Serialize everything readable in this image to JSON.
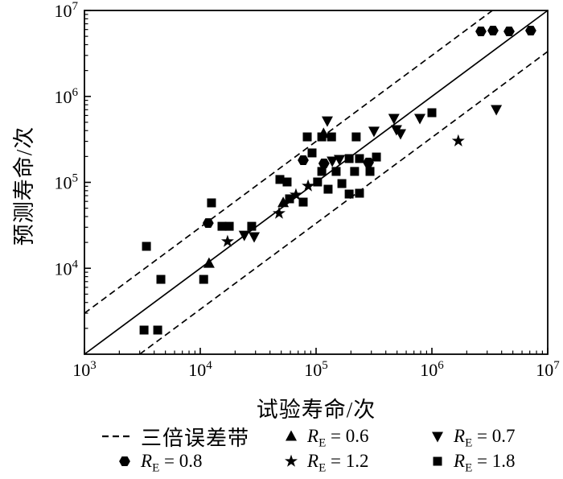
{
  "figure": {
    "x_axis": {
      "label": "试验寿命/次",
      "scale": "log",
      "tick_exponents": [
        3,
        4,
        5,
        6,
        7
      ],
      "range": [
        1000,
        10000000
      ]
    },
    "y_axis": {
      "label": "预测寿命/次",
      "scale": "log",
      "tick_exponents": [
        4,
        5,
        6,
        7
      ],
      "range": [
        1000,
        10000000
      ]
    }
  },
  "legend": {
    "error_band": {
      "marker": "dashed-line",
      "label": "三倍误差带"
    },
    "series_labels": [
      {
        "marker": "triangle-up",
        "symbol": "R",
        "sub": "E",
        "value": " = 0.6"
      },
      {
        "marker": "triangle-down",
        "symbol": "R",
        "sub": "E",
        "value": " = 0.7"
      },
      {
        "marker": "hexagon",
        "symbol": "R",
        "sub": "E",
        "value": " = 0.8"
      },
      {
        "marker": "star",
        "symbol": "R",
        "sub": "E",
        "value": " = 1.2"
      },
      {
        "marker": "square",
        "symbol": "R",
        "sub": "E",
        "value": " = 1.8"
      }
    ]
  },
  "colors": {
    "foreground": "#000000",
    "background": "#ffffff"
  },
  "chart_data": {
    "type": "scatter",
    "title": "",
    "xlabel": "试验寿命/次",
    "ylabel": "预测寿命/次",
    "x_scale": "log",
    "y_scale": "log",
    "xlim": [
      1000,
      10000000
    ],
    "ylim": [
      1000,
      10000000
    ],
    "grid": false,
    "legend_position": "below",
    "reference_lines": {
      "identity": true,
      "error_band_factor": 3,
      "error_band_style": "dashed",
      "error_band_label": "三倍误差带"
    },
    "series": [
      {
        "name": "RE = 0.6",
        "marker": "triangle-up",
        "color": "#000000",
        "points": [
          [
            11900,
            11400
          ],
          [
            52000,
            58000
          ],
          [
            116000,
            370000
          ]
        ]
      },
      {
        "name": "RE = 0.7",
        "marker": "triangle-down",
        "color": "#000000",
        "points": [
          [
            24000,
            24300
          ],
          [
            29200,
            23300
          ],
          [
            125000,
            520000
          ],
          [
            138000,
            177000
          ],
          [
            159000,
            185000
          ],
          [
            316000,
            394000
          ],
          [
            470000,
            556000
          ],
          [
            494000,
            411000
          ],
          [
            536000,
            369000
          ],
          [
            787000,
            556000
          ],
          [
            3600000,
            705000
          ]
        ]
      },
      {
        "name": "RE = 0.8",
        "marker": "hexagon",
        "color": "#000000",
        "points": [
          [
            11700,
            33600
          ],
          [
            77400,
            181000
          ],
          [
            117000,
            166000
          ],
          [
            283000,
            170000
          ],
          [
            2650000,
            5710000
          ],
          [
            3370000,
            5830000
          ],
          [
            4640000,
            5710000
          ],
          [
            7140000,
            5830000
          ]
        ]
      },
      {
        "name": "RE = 1.2",
        "marker": "star",
        "color": "#000000",
        "points": [
          [
            17200,
            20500
          ],
          [
            47900,
            43600
          ],
          [
            67000,
            71600
          ],
          [
            85300,
            90800
          ],
          [
            1690000,
            303000
          ]
        ]
      },
      {
        "name": "RE = 1.8",
        "marker": "square",
        "color": "#000000",
        "points": [
          [
            3270,
            1910
          ],
          [
            4290,
            1910
          ],
          [
            4570,
            7430
          ],
          [
            10700,
            7430
          ],
          [
            3430,
            18000
          ],
          [
            12500,
            57700
          ],
          [
            15400,
            30800
          ],
          [
            17800,
            30800
          ],
          [
            27800,
            30800
          ],
          [
            48700,
            108000
          ],
          [
            56200,
            101000
          ],
          [
            59000,
            64300
          ],
          [
            77400,
            58900
          ],
          [
            103000,
            101000
          ],
          [
            127000,
            83200
          ],
          [
            167000,
            96800
          ],
          [
            193000,
            73100
          ],
          [
            237000,
            74700
          ],
          [
            83900,
            338000
          ],
          [
            92300,
            220000
          ],
          [
            112000,
            338000
          ],
          [
            136000,
            338000
          ],
          [
            222000,
            338000
          ],
          [
            112000,
            134000
          ],
          [
            149000,
            134000
          ],
          [
            193000,
            189000
          ],
          [
            237000,
            189000
          ],
          [
            215000,
            134000
          ],
          [
            292000,
            134000
          ],
          [
            332000,
            197000
          ],
          [
            1000000,
            646000
          ]
        ]
      }
    ]
  }
}
